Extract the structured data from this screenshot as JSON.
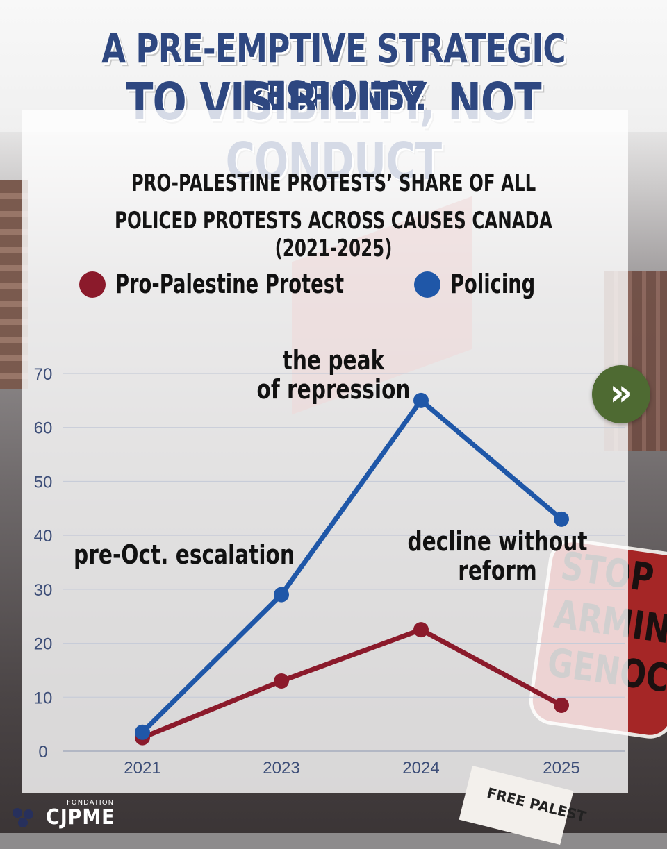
{
  "title": {
    "line1": "A PRE-EMPTIVE STRATEGIC RESPONSE",
    "line2": "TO VISIBILITY, NOT CONDUCT"
  },
  "subtitle": {
    "line1": "PRO-PALESTINE PROTESTS’ SHARE OF ALL",
    "line2": "POLICED PROTESTS ACROSS CAUSES CANADA (2021-2025)"
  },
  "colors": {
    "protest": "#8b1a2b",
    "policing": "#1f57a8",
    "title": "#2e4780",
    "nav_button": "#4e6a32"
  },
  "chart_data": {
    "type": "line",
    "categories": [
      "2021",
      "2023",
      "2024",
      "2025"
    ],
    "series": [
      {
        "name": "Pro-Palestine Protest",
        "color": "#8b1a2b",
        "values": [
          2.5,
          13,
          22.5,
          8.5
        ]
      },
      {
        "name": "Policing",
        "color": "#1f57a8",
        "values": [
          3.5,
          29,
          65,
          43
        ]
      }
    ],
    "yticks": [
      0,
      10,
      20,
      30,
      40,
      50,
      60,
      70
    ],
    "ylim": [
      0,
      70
    ],
    "grid": true,
    "legend_position": "top-left",
    "annotations": [
      {
        "id": "annot-pre-oct",
        "lines": [
          "pre-Oct. escalation"
        ]
      },
      {
        "id": "annot-peak",
        "lines": [
          "the peak",
          "of repression"
        ]
      },
      {
        "id": "annot-decline",
        "lines": [
          "decline without",
          "reform"
        ]
      }
    ]
  },
  "nav": {
    "next_icon": "double-chevron-right-icon",
    "next_glyph": "»"
  },
  "background_text": {
    "sign_lines": [
      "STOP",
      "ARMIN",
      "GENOC"
    ],
    "poster_text": "FREE PALEST"
  },
  "logo": {
    "small": "FONDATION",
    "big": "CJPME"
  }
}
